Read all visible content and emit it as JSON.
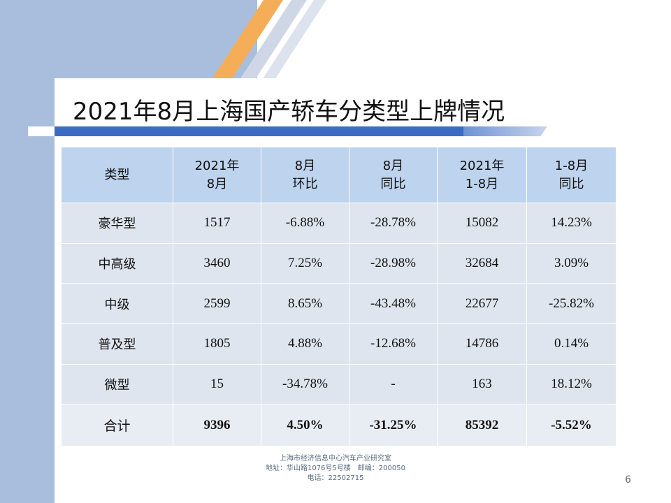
{
  "slide": {
    "title": "2021年8月上海国产轿车分类型上牌情况",
    "page_number": "6"
  },
  "table": {
    "headers": [
      [
        "类型"
      ],
      [
        "2021年",
        "8月"
      ],
      [
        "8月",
        "环比"
      ],
      [
        "8月",
        "同比"
      ],
      [
        "2021年",
        "1-8月"
      ],
      [
        "1-8月",
        "同比"
      ]
    ],
    "rows": [
      [
        "豪华型",
        "1517",
        "-6.88%",
        "-28.78%",
        "15082",
        "14.23%"
      ],
      [
        "中高级",
        "3460",
        "7.25%",
        "-28.98%",
        "32684",
        "3.09%"
      ],
      [
        "中级",
        "2599",
        "8.65%",
        "-43.48%",
        "22677",
        "-25.82%"
      ],
      [
        "普及型",
        "1805",
        "4.88%",
        "-12.68%",
        "14786",
        "0.14%"
      ],
      [
        "微型",
        "15",
        "-34.78%",
        "-",
        "163",
        "18.12%"
      ]
    ],
    "total": [
      "合计",
      "9396",
      "4.50%",
      "-31.25%",
      "85392",
      "-5.52%"
    ]
  },
  "footer": {
    "line1": "上海市经济信息中心汽车产业研究室",
    "line2": "地址：华山路1076号5号楼　邮编：200050",
    "line3": "电话：22502715"
  },
  "colors": {
    "header_bg": "#bed3ee",
    "cell_bg": "#dfe5ef",
    "accent_blue": "#3b6cc4",
    "accent_orange": "#f6ad58",
    "side_blue": "#a9bedd"
  }
}
